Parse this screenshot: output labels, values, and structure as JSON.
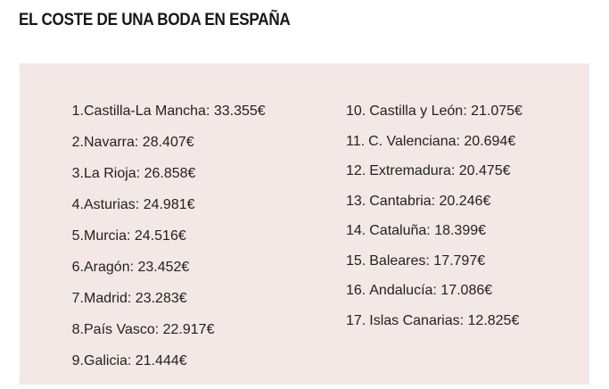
{
  "title": "EL COSTE DE UNA BODA EN ESPAÑA",
  "left_items": [
    {
      "num": "1.",
      "text": "Castilla-La Mancha: 33.355€"
    },
    {
      "num": "2.",
      "text": "Navarra: 28.407€"
    },
    {
      "num": "3.",
      "text": "La Rioja: 26.858€"
    },
    {
      "num": "4.",
      "text": "Asturias: 24.981€"
    },
    {
      "num": "5.",
      "text": "Murcia: 24.516€"
    },
    {
      "num": "6.",
      "text": "Aragón: 23.452€"
    },
    {
      "num": "7.",
      "text": "Madrid: 23.283€"
    },
    {
      "num": "8.",
      "text": "País Vasco: 22.917€"
    },
    {
      "num": "9.",
      "text": "Galicia: 21.444€"
    }
  ],
  "right_items": [
    {
      "num": "10.",
      "text": "Castilla y León: 21.075€"
    },
    {
      "num": "11.",
      "text": "C. Valenciana: 20.694€"
    },
    {
      "num": "12.",
      "text": "Extremadura: 20.475€"
    },
    {
      "num": "13.",
      "text": "Cantabria: 20.246€"
    },
    {
      "num": "14.",
      "text": "Cataluña: 18.399€"
    },
    {
      "num": "15.",
      "text": "Baleares: 17.797€"
    },
    {
      "num": "16.",
      "text": "Andalucía: 17.086€"
    },
    {
      "num": "17.",
      "text": "Islas Canarias: 12.825€"
    }
  ],
  "colors": {
    "panel_background": "#f3e8e6",
    "text": "#222222"
  }
}
